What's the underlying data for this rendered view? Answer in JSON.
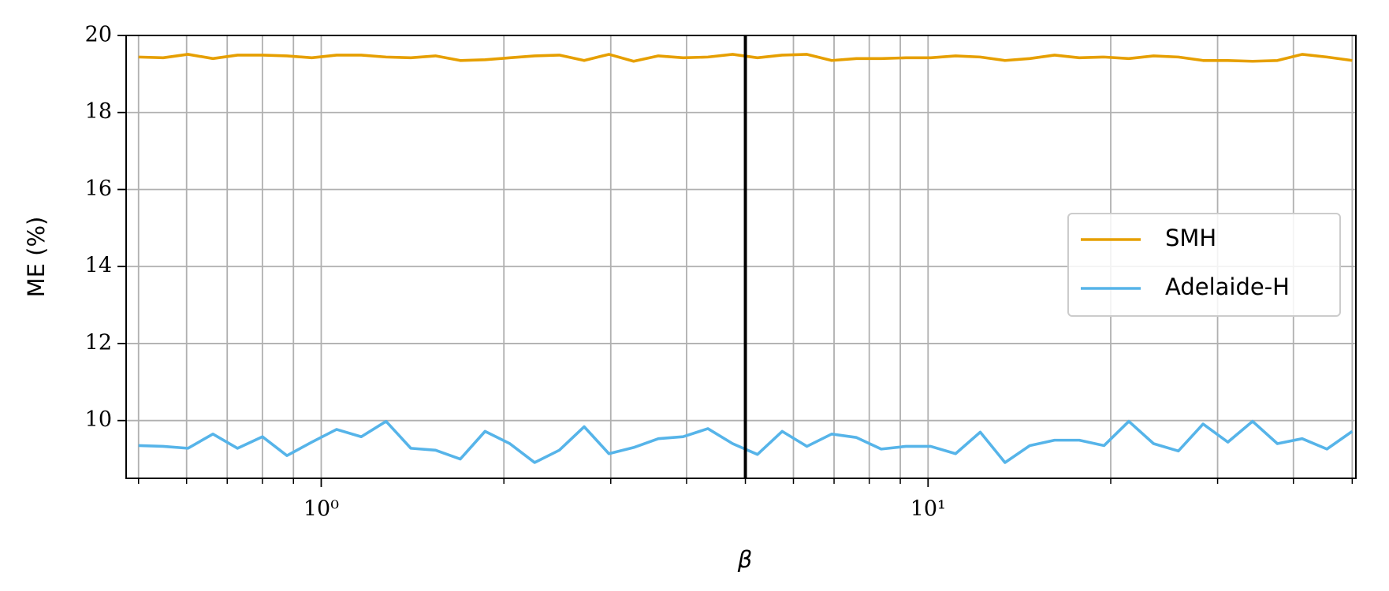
{
  "chart_data": {
    "type": "line",
    "x": [
      0.5,
      0.549,
      0.603,
      0.663,
      0.728,
      0.8,
      0.878,
      0.965,
      1.06,
      1.164,
      1.279,
      1.405,
      1.543,
      1.695,
      1.862,
      2.046,
      2.247,
      2.468,
      2.712,
      2.979,
      3.272,
      3.594,
      3.948,
      4.337,
      4.764,
      5.234,
      5.749,
      6.315,
      6.937,
      7.621,
      8.371,
      9.196,
      10.1,
      11.1,
      12.19,
      13.39,
      14.71,
      16.16,
      17.75,
      19.5,
      21.42,
      23.53,
      25.85,
      28.39,
      31.19,
      34.26,
      37.64,
      41.35,
      45.42,
      50
    ],
    "series": [
      {
        "name": "SMH",
        "color": "#e69f00",
        "values": [
          19.44,
          19.42,
          19.51,
          19.4,
          19.49,
          19.49,
          19.47,
          19.42,
          19.49,
          19.49,
          19.44,
          19.42,
          19.47,
          19.35,
          19.37,
          19.42,
          19.47,
          19.49,
          19.35,
          19.51,
          19.33,
          19.47,
          19.42,
          19.44,
          19.51,
          19.42,
          19.49,
          19.51,
          19.35,
          19.4,
          19.4,
          19.42,
          19.42,
          19.47,
          19.44,
          19.35,
          19.4,
          19.49,
          19.42,
          19.44,
          19.4,
          19.47,
          19.44,
          19.35,
          19.35,
          19.33,
          19.35,
          19.51,
          19.44,
          19.35
        ]
      },
      {
        "name": "Adelaide-H",
        "color": "#56b4e9",
        "values": [
          9.35,
          9.33,
          9.28,
          9.65,
          9.28,
          9.58,
          9.09,
          9.44,
          9.77,
          9.58,
          9.98,
          9.28,
          9.23,
          9.0,
          9.72,
          9.4,
          8.91,
          9.23,
          9.84,
          9.14,
          9.3,
          9.53,
          9.58,
          9.79,
          9.4,
          9.12,
          9.72,
          9.33,
          9.65,
          9.56,
          9.26,
          9.33,
          9.33,
          9.14,
          9.7,
          8.91,
          9.35,
          9.49,
          9.49,
          9.35,
          9.98,
          9.4,
          9.21,
          9.91,
          9.44,
          9.98,
          9.4,
          9.53,
          9.26,
          9.72
        ]
      }
    ],
    "xlabel": "β",
    "ylabel": "ME (%)",
    "xscale": "log",
    "xlim": [
      0.477,
      50.7
    ],
    "xticks": [
      {
        "value": 1,
        "label": "10⁰"
      },
      {
        "value": 10,
        "label": "10¹"
      }
    ],
    "xminorticks": [
      0.5,
      0.6,
      0.7,
      0.8,
      0.9,
      2,
      3,
      4,
      5,
      6,
      7,
      8,
      9,
      20,
      30,
      40,
      50
    ],
    "ylim": [
      8.5,
      20
    ],
    "yticks": [
      10,
      12,
      14,
      16,
      18,
      20
    ],
    "vline": 5,
    "vline_color": "#000000",
    "grid": true,
    "legend": "center right"
  }
}
